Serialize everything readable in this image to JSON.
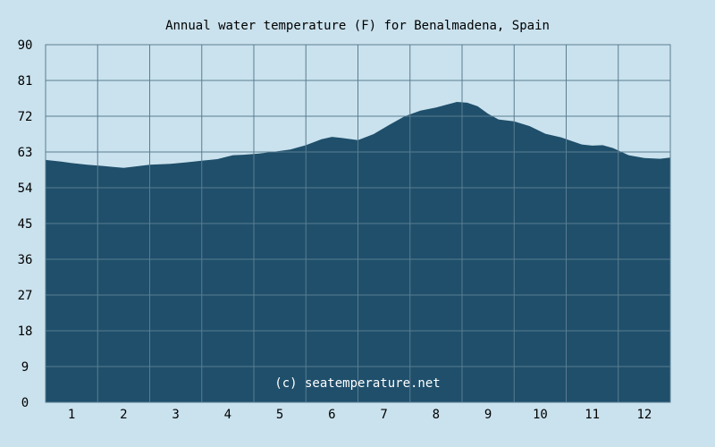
{
  "chart_data": {
    "type": "area",
    "title": "Annual water temperature (F) for Benalmadena, Spain",
    "xlabel": "",
    "ylabel": "",
    "x_ticks": [
      "1",
      "2",
      "3",
      "4",
      "5",
      "6",
      "7",
      "8",
      "9",
      "10",
      "11",
      "12"
    ],
    "y_ticks": [
      "0",
      "9",
      "18",
      "27",
      "36",
      "45",
      "54",
      "63",
      "72",
      "81",
      "90"
    ],
    "ylim": [
      0,
      90
    ],
    "xlim": [
      0.5,
      12.5
    ],
    "grid": true,
    "watermark": "(c) seatemperature.net",
    "series": [
      {
        "x": [
          0.5,
          0.8,
          1.0,
          1.3,
          1.6,
          1.9,
          2.0,
          2.2,
          2.5,
          2.9,
          3.2,
          3.5,
          3.8,
          4.1,
          4.3,
          4.6,
          4.9,
          5.2,
          5.5,
          5.8,
          6.0,
          6.2,
          6.5,
          6.8,
          7.1,
          7.4,
          7.7,
          8.0,
          8.2,
          8.4,
          8.6,
          8.8,
          9.0,
          9.2,
          9.5,
          9.8,
          10.1,
          10.4,
          10.6,
          10.8,
          11.0,
          11.2,
          11.4,
          11.7,
          12.0,
          12.3,
          12.5
        ],
        "values": [
          61,
          60.6,
          60.2,
          59.8,
          59.5,
          59.1,
          59.0,
          59.3,
          59.8,
          60.0,
          60.4,
          60.8,
          61.2,
          62.2,
          62.3,
          62.6,
          63.1,
          63.6,
          64.7,
          66.2,
          66.8,
          66.5,
          66.0,
          67.5,
          69.8,
          72.0,
          73.4,
          74.2,
          74.9,
          75.6,
          75.4,
          74.5,
          72.6,
          71.2,
          70.7,
          69.5,
          67.6,
          66.7,
          65.8,
          64.9,
          64.6,
          64.7,
          64.0,
          62.2,
          61.5,
          61.3,
          61.6
        ]
      }
    ]
  },
  "colors": {
    "background": "#cae2ee",
    "plot_background": "#cae2ee",
    "area_fill": "#1f4f6b",
    "grid": "#5a7d90",
    "frame": "#5a7d90",
    "watermark": "#ffffff"
  }
}
